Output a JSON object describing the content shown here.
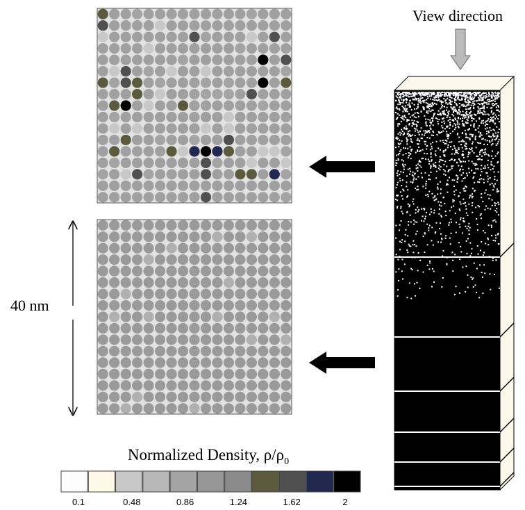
{
  "view_label": "View direction",
  "scale_label": "40 nm",
  "colorbar": {
    "title": "Normalized Density, ρ/ρ",
    "title_subscript": "0",
    "ticks": [
      0.1,
      0.48,
      0.86,
      1.24,
      1.62,
      2
    ]
  }
}
